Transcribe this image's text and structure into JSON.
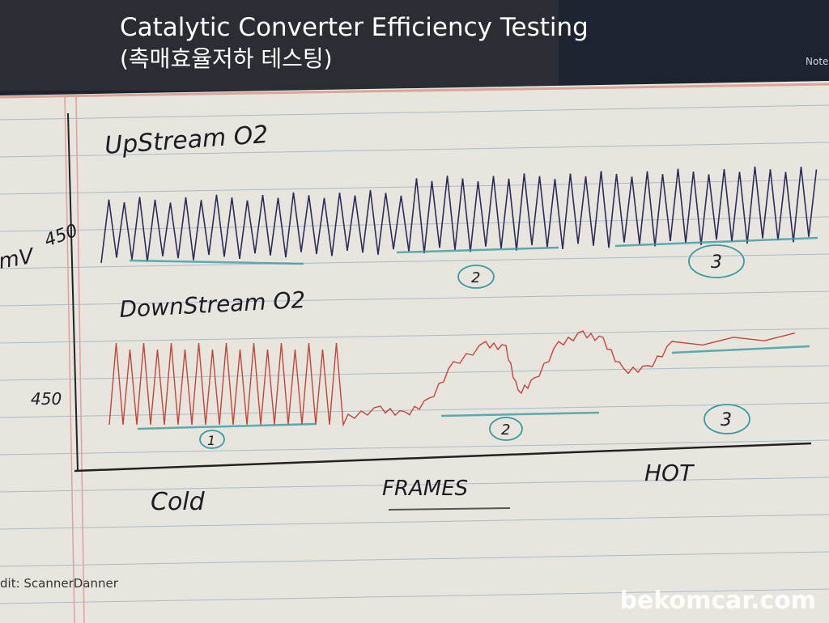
{
  "header": {
    "title": "Catalytic Converter Efficiency Testing",
    "subtitle": "(촉매효율저하 테스팅)",
    "note": "Note"
  },
  "notes": {
    "upstream_label": "UpStream O2",
    "downstream_label": "DownStream O2",
    "y_unit": "mV",
    "upstream_level": "450",
    "downstream_level": "450",
    "x_label": "FRAMES",
    "cold_label": "Cold",
    "hot_label": "HOT",
    "upstream_markers": [
      "2",
      "3"
    ],
    "downstream_markers": [
      "1",
      "2",
      "3"
    ]
  },
  "footer": {
    "credit": "dit: ScannerDanner",
    "watermark": "bekomcar.com"
  }
}
